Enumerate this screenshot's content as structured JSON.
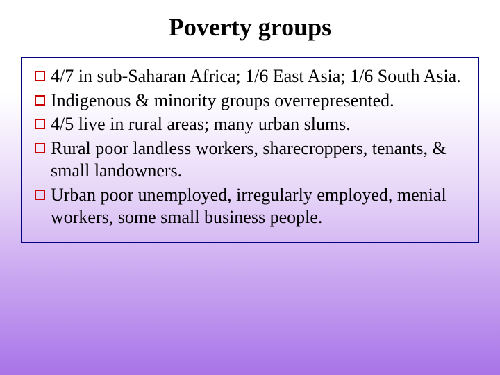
{
  "slide": {
    "title": "Poverty groups",
    "bullets": [
      "4/7 in sub-Saharan Africa; 1/6 East Asia; 1/6 South Asia.",
      "Indigenous & minority groups overrepresented.",
      "4/5 live in rural areas; many urban slums.",
      "Rural poor landless workers, sharecroppers, tenants, & small landowners.",
      "Urban poor unemployed, irregularly employed, menial workers, some small business people."
    ]
  },
  "style": {
    "background_gradient": [
      "#ffffff",
      "#e8d8f8",
      "#c8a4f0",
      "#a874e8"
    ],
    "title_color": "#000000",
    "title_fontsize": 36,
    "title_fontweight": "bold",
    "body_fontfamily": "Times New Roman",
    "body_fontsize": 26,
    "body_color": "#000000",
    "box_border_color": "#000080",
    "box_border_width": 2,
    "bullet_marker": {
      "shape": "hollow-square",
      "border_color": "#cc0000",
      "border_width": 2.5,
      "size": 15
    }
  }
}
